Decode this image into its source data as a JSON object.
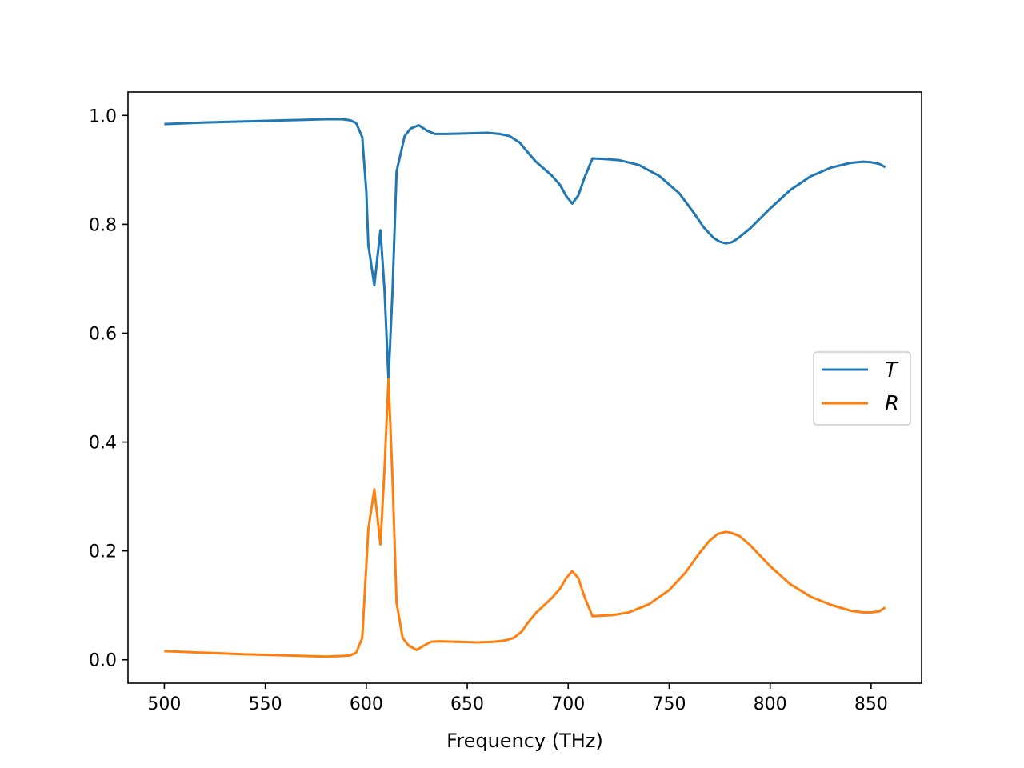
{
  "chart_data": {
    "type": "line",
    "title": "",
    "xlabel": "Frequency (THz)",
    "ylabel": "",
    "xlim": [
      482,
      875
    ],
    "ylim": [
      -0.043,
      1.043
    ],
    "xticks": [
      500,
      550,
      600,
      650,
      700,
      750,
      800,
      850
    ],
    "yticks": [
      0.0,
      0.2,
      0.4,
      0.6,
      0.8,
      1.0
    ],
    "grid": false,
    "legend_position": "center-right",
    "series": [
      {
        "name": "T",
        "color": "#1f77b4",
        "points": [
          [
            500,
            0.984
          ],
          [
            520,
            0.987
          ],
          [
            540,
            0.989
          ],
          [
            560,
            0.991
          ],
          [
            580,
            0.993
          ],
          [
            588,
            0.993
          ],
          [
            592,
            0.991
          ],
          [
            595,
            0.986
          ],
          [
            598,
            0.96
          ],
          [
            600,
            0.86
          ],
          [
            601,
            0.762
          ],
          [
            604,
            0.688
          ],
          [
            607,
            0.789
          ],
          [
            609,
            0.68
          ],
          [
            611,
            0.515
          ],
          [
            613,
            0.68
          ],
          [
            615,
            0.897
          ],
          [
            619,
            0.962
          ],
          [
            622,
            0.976
          ],
          [
            626,
            0.982
          ],
          [
            630,
            0.972
          ],
          [
            634,
            0.966
          ],
          [
            640,
            0.966
          ],
          [
            650,
            0.967
          ],
          [
            660,
            0.968
          ],
          [
            666,
            0.966
          ],
          [
            671,
            0.962
          ],
          [
            676,
            0.95
          ],
          [
            680,
            0.932
          ],
          [
            684,
            0.915
          ],
          [
            688,
            0.902
          ],
          [
            692,
            0.889
          ],
          [
            696,
            0.872
          ],
          [
            699,
            0.852
          ],
          [
            702,
            0.838
          ],
          [
            705,
            0.853
          ],
          [
            708,
            0.885
          ],
          [
            712,
            0.921
          ],
          [
            718,
            0.92
          ],
          [
            725,
            0.918
          ],
          [
            735,
            0.909
          ],
          [
            745,
            0.889
          ],
          [
            755,
            0.857
          ],
          [
            762,
            0.822
          ],
          [
            767,
            0.795
          ],
          [
            772,
            0.775
          ],
          [
            775,
            0.768
          ],
          [
            778,
            0.765
          ],
          [
            781,
            0.767
          ],
          [
            784,
            0.774
          ],
          [
            790,
            0.792
          ],
          [
            800,
            0.829
          ],
          [
            810,
            0.863
          ],
          [
            820,
            0.888
          ],
          [
            830,
            0.904
          ],
          [
            840,
            0.913
          ],
          [
            846,
            0.915
          ],
          [
            850,
            0.914
          ],
          [
            854,
            0.911
          ],
          [
            857,
            0.905
          ]
        ]
      },
      {
        "name": "R",
        "color": "#ff7f0e",
        "points": [
          [
            500,
            0.016
          ],
          [
            520,
            0.013
          ],
          [
            540,
            0.01
          ],
          [
            560,
            0.008
          ],
          [
            580,
            0.006
          ],
          [
            588,
            0.007
          ],
          [
            592,
            0.008
          ],
          [
            595,
            0.013
          ],
          [
            598,
            0.04
          ],
          [
            601,
            0.24
          ],
          [
            604,
            0.313
          ],
          [
            607,
            0.212
          ],
          [
            609,
            0.35
          ],
          [
            611,
            0.516
          ],
          [
            613,
            0.33
          ],
          [
            615,
            0.105
          ],
          [
            618,
            0.04
          ],
          [
            621,
            0.026
          ],
          [
            625,
            0.018
          ],
          [
            628,
            0.025
          ],
          [
            632,
            0.033
          ],
          [
            636,
            0.034
          ],
          [
            645,
            0.033
          ],
          [
            655,
            0.032
          ],
          [
            663,
            0.033
          ],
          [
            668,
            0.035
          ],
          [
            673,
            0.04
          ],
          [
            677,
            0.052
          ],
          [
            680,
            0.068
          ],
          [
            684,
            0.086
          ],
          [
            688,
            0.1
          ],
          [
            692,
            0.114
          ],
          [
            696,
            0.131
          ],
          [
            699,
            0.15
          ],
          [
            702,
            0.163
          ],
          [
            705,
            0.15
          ],
          [
            708,
            0.116
          ],
          [
            712,
            0.08
          ],
          [
            716,
            0.081
          ],
          [
            722,
            0.082
          ],
          [
            730,
            0.087
          ],
          [
            740,
            0.102
          ],
          [
            750,
            0.128
          ],
          [
            758,
            0.16
          ],
          [
            765,
            0.196
          ],
          [
            770,
            0.219
          ],
          [
            774,
            0.231
          ],
          [
            778,
            0.235
          ],
          [
            781,
            0.233
          ],
          [
            785,
            0.227
          ],
          [
            790,
            0.211
          ],
          [
            800,
            0.172
          ],
          [
            810,
            0.139
          ],
          [
            820,
            0.116
          ],
          [
            830,
            0.101
          ],
          [
            840,
            0.09
          ],
          [
            846,
            0.087
          ],
          [
            850,
            0.087
          ],
          [
            854,
            0.089
          ],
          [
            857,
            0.096
          ]
        ]
      }
    ]
  }
}
